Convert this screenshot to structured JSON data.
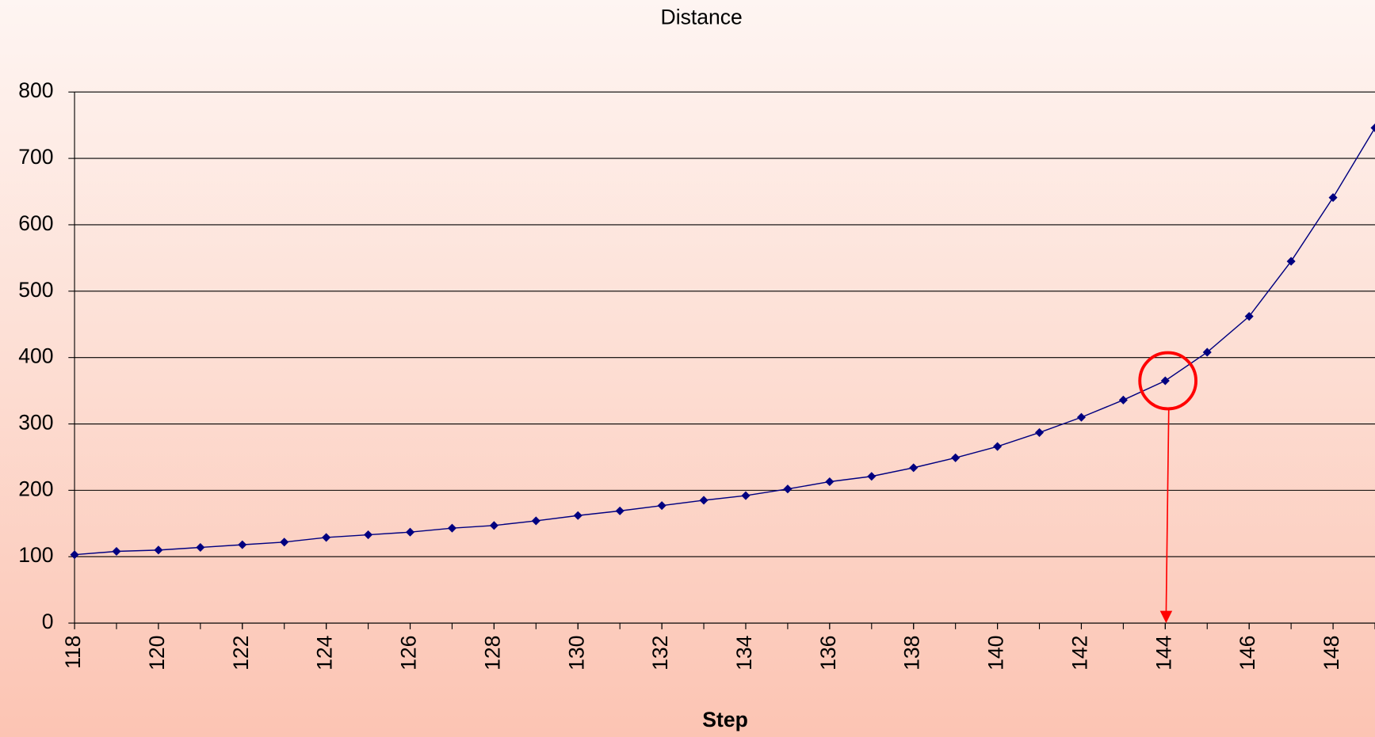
{
  "chart_data": {
    "type": "line",
    "title": "Distance",
    "x_label": "Step",
    "x": [
      118,
      119,
      120,
      121,
      122,
      123,
      124,
      125,
      126,
      127,
      128,
      129,
      130,
      131,
      132,
      133,
      134,
      135,
      136,
      137,
      138,
      139,
      140,
      141,
      142,
      143,
      144,
      145,
      146,
      147,
      148,
      149
    ],
    "series": [
      {
        "name": "Distance",
        "color": "#000080",
        "values": [
          103,
          108,
          110,
          114,
          118,
          122,
          129,
          133,
          137,
          143,
          147,
          154,
          162,
          169,
          177,
          185,
          192,
          202,
          213,
          221,
          234,
          249,
          266,
          287,
          310,
          336,
          365,
          408,
          462,
          545,
          641,
          746
        ]
      }
    ],
    "xlim": [
      118,
      149
    ],
    "xticks": [
      118,
      120,
      122,
      124,
      126,
      128,
      130,
      132,
      134,
      136,
      138,
      140,
      142,
      144,
      146,
      148
    ],
    "xminor_ticks": [
      118,
      119,
      120,
      121,
      122,
      123,
      124,
      125,
      126,
      127,
      128,
      129,
      130,
      131,
      132,
      133,
      134,
      135,
      136,
      137,
      138,
      139,
      140,
      141,
      142,
      143,
      144,
      145,
      146,
      147,
      148,
      149
    ],
    "ylim": [
      0,
      800
    ],
    "yticks": [
      0,
      100,
      200,
      300,
      400,
      500,
      600,
      700,
      800
    ],
    "grid": true,
    "highlight_x": 144,
    "highlight_color": "#ff0000"
  }
}
